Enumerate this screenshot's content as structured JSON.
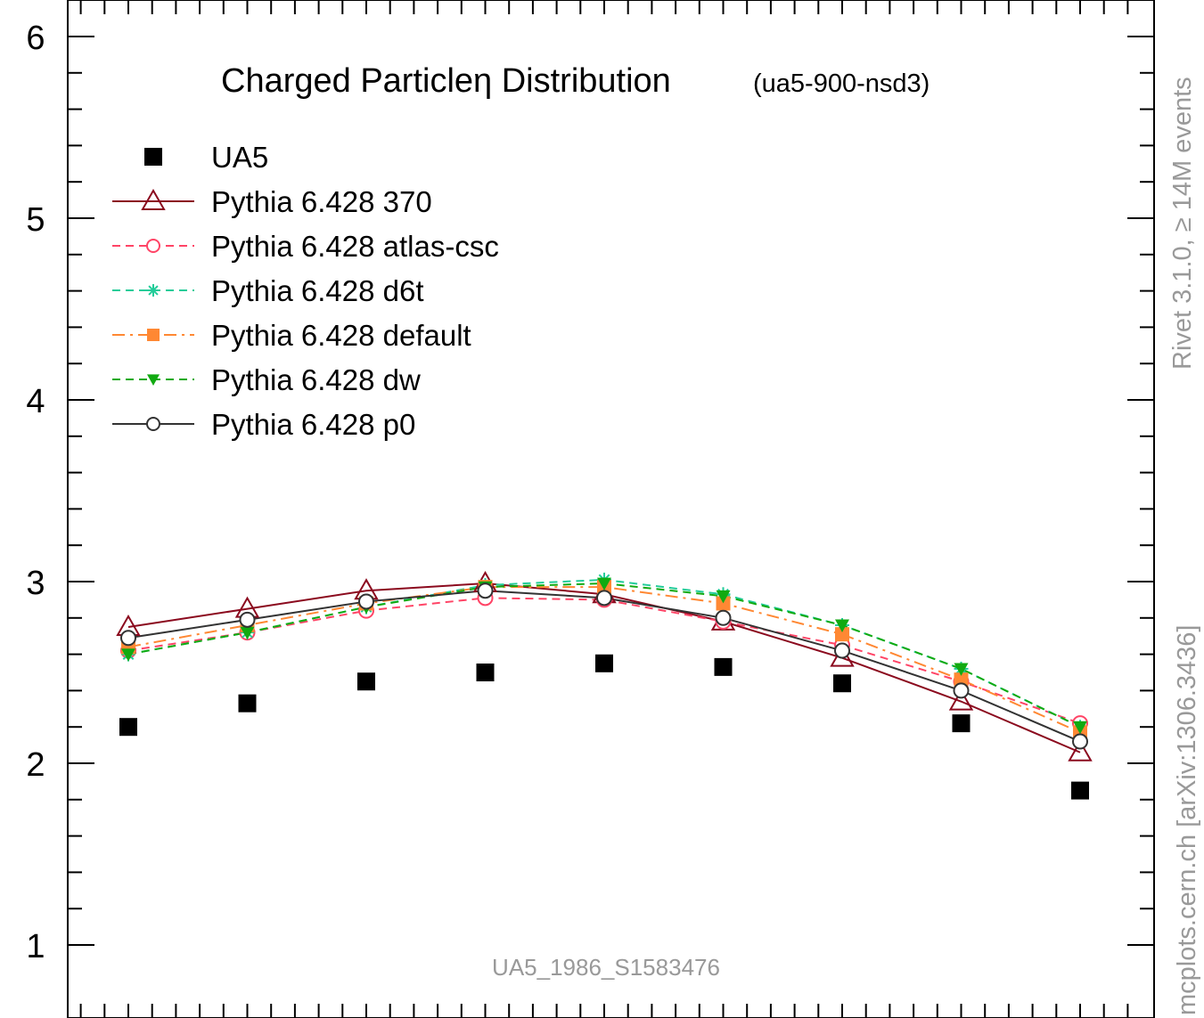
{
  "chart_data": {
    "type": "scatter",
    "title": "Charged Particleη Distribution",
    "subtitle": "(ua5-900-nsd3)",
    "xlabel": "",
    "ylabel": "",
    "ylim": [
      0.75,
      6.2
    ],
    "y_ticks": [
      1,
      2,
      3,
      4,
      5,
      6
    ],
    "x": [
      0.25,
      0.75,
      1.25,
      1.75,
      2.25,
      2.75,
      3.25,
      3.75,
      4.25
    ],
    "grid": false,
    "legend_position": "top-left",
    "series": [
      {
        "name": "UA5",
        "color": "#000000",
        "marker": "square-filled",
        "line": "none",
        "values": [
          2.2,
          2.33,
          2.45,
          2.5,
          2.55,
          2.53,
          2.44,
          2.22,
          1.85
        ]
      },
      {
        "name": "Pythia 6.428 370",
        "color": "#8b0a1e",
        "marker": "triangle-open",
        "line": "solid",
        "values": [
          2.75,
          2.85,
          2.95,
          2.99,
          2.93,
          2.78,
          2.58,
          2.34,
          2.06
        ]
      },
      {
        "name": "Pythia 6.428 atlas-csc",
        "color": "#ff4466",
        "marker": "circle-open",
        "line": "dashed",
        "values": [
          2.62,
          2.72,
          2.84,
          2.91,
          2.9,
          2.78,
          2.65,
          2.45,
          2.22
        ]
      },
      {
        "name": "Pythia 6.428 d6t",
        "color": "#22cc99",
        "marker": "asterisk",
        "line": "dashed",
        "values": [
          2.6,
          2.72,
          2.86,
          2.98,
          3.01,
          2.93,
          2.76,
          2.52,
          2.2
        ]
      },
      {
        "name": "Pythia 6.428 default",
        "color": "#ff8833",
        "marker": "square-filled",
        "line": "dashdot",
        "values": [
          2.64,
          2.76,
          2.88,
          2.97,
          2.97,
          2.88,
          2.71,
          2.46,
          2.17
        ]
      },
      {
        "name": "Pythia 6.428 dw",
        "color": "#11aa11",
        "marker": "triangle-down-filled",
        "line": "dashed",
        "values": [
          2.6,
          2.72,
          2.86,
          2.97,
          2.99,
          2.92,
          2.76,
          2.52,
          2.2
        ]
      },
      {
        "name": "Pythia 6.428 p0",
        "color": "#333333",
        "marker": "circle-open",
        "line": "solid",
        "values": [
          2.69,
          2.79,
          2.89,
          2.95,
          2.91,
          2.8,
          2.62,
          2.4,
          2.12
        ]
      }
    ],
    "annotations": {
      "analysis_id": "UA5_1986_S1583476",
      "side_label_top": "Rivet 3.1.0, ≥ 14M events",
      "side_label_bottom": "mcplots.cern.ch [arXiv:1306.3436]"
    }
  }
}
